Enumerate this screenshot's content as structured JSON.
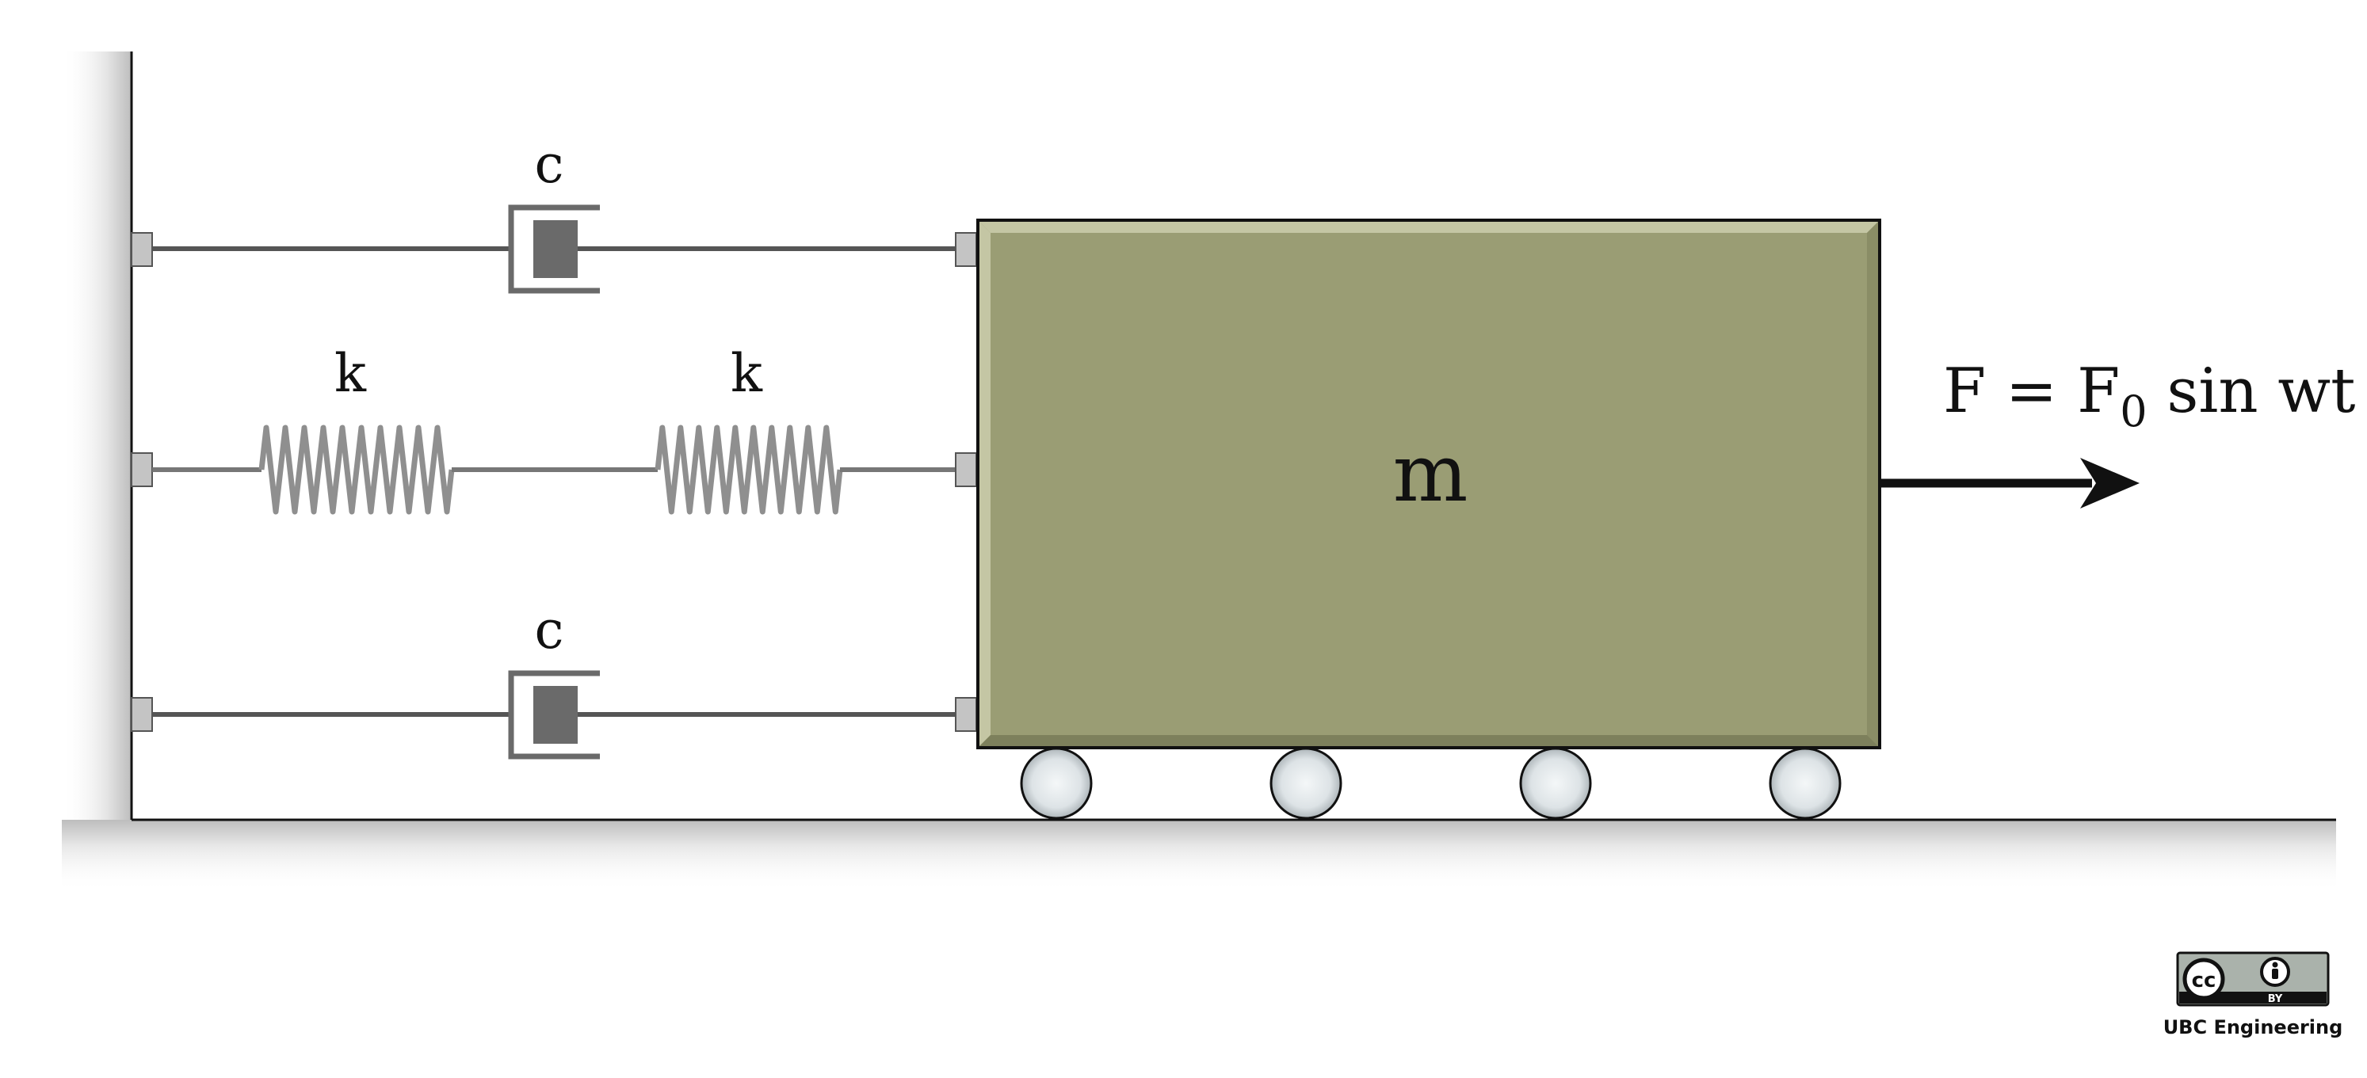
{
  "diagram": {
    "upper_damper_label": "c",
    "lower_damper_label": "c",
    "left_spring_label": "k",
    "right_spring_label": "k",
    "mass_label": "m",
    "force_label": {
      "prefix": "F = F",
      "subscript": "0",
      "suffix": " sin wt"
    }
  },
  "license": {
    "cc_text": "cc",
    "by_text": "BY",
    "credit": "UBC Engineering"
  },
  "colors": {
    "mass_fill": "#9a9d74",
    "mass_bevel_light": "#c4c6a4",
    "mass_bevel_dark": "#7d805c",
    "damper_gray": "#6a6a6a",
    "spring_gray": "#8f8f8f",
    "wheel_fill": "#dde3e6",
    "line": "#111111"
  }
}
